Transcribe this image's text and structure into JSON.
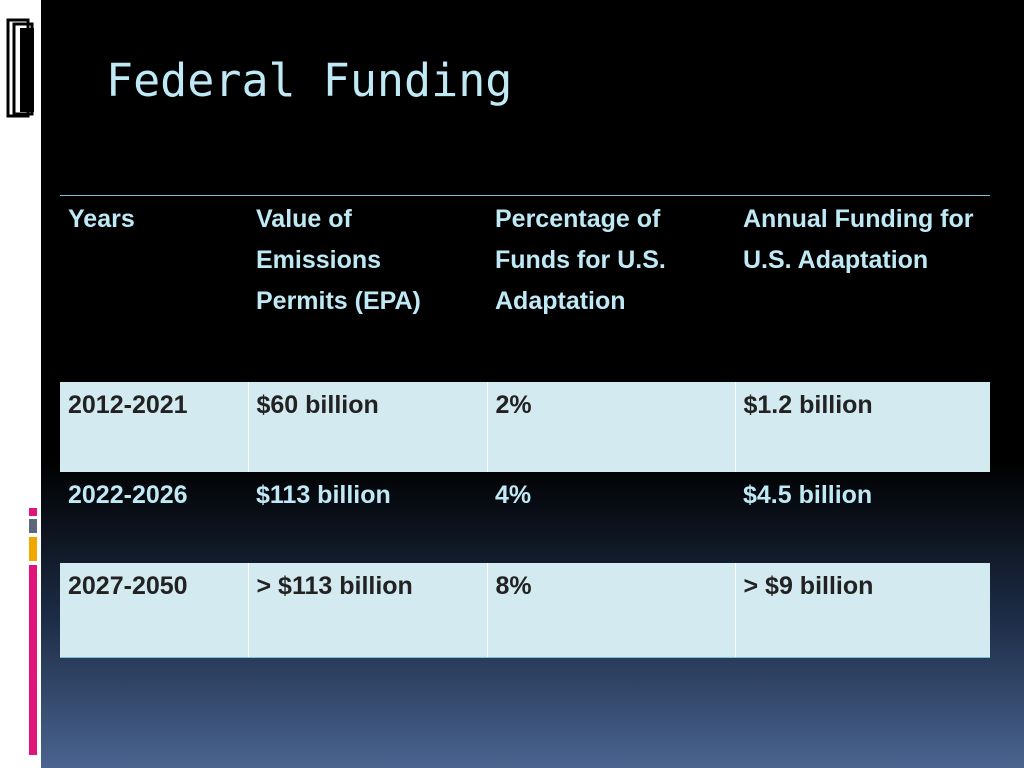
{
  "slide": {
    "title": "Federal Funding"
  },
  "decoration": {
    "icon": "document-stack-icon",
    "accent_colors": [
      "#e0147b",
      "#5a6a7a",
      "#f0a800",
      "#e0147b"
    ]
  },
  "table": {
    "headers": [
      "Years",
      "Value of Emissions Permits (EPA)",
      "Percentage of Funds for U.S. Adaptation",
      "Annual Funding for U.S. Adaptation"
    ],
    "rows": [
      [
        "2012-2021",
        "$60 billion",
        "2%",
        "$1.2 billion"
      ],
      [
        "2022-2026",
        "$113 billion",
        "4%",
        "$4.5 billion"
      ],
      [
        "2027-2050",
        "> $113 billion",
        "8%",
        "> $9 billion"
      ]
    ]
  },
  "colors": {
    "title": "#bfeaf5",
    "header_text": "#bfeaf5",
    "light_row_bg": "#d3eaf1",
    "light_row_text": "#222222"
  }
}
